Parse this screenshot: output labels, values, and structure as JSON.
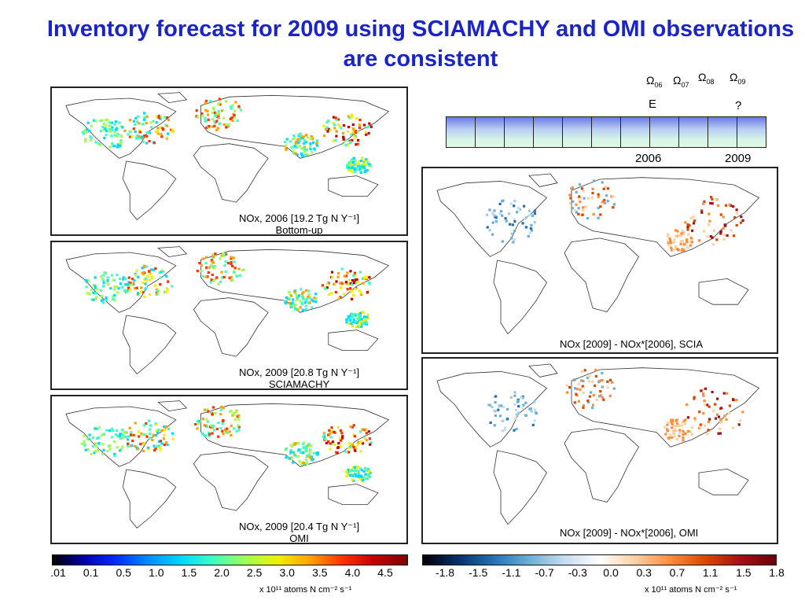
{
  "title": "Inventory forecast for 2009 using SCIAMACHY and OMI observations are consistent",
  "panels": [
    {
      "id": "bottom-up-2006",
      "caption_line1": "NOx, 2006 [19.2 Tg N Y⁻¹]",
      "caption_line2": "Bottom-up",
      "kind": "abs"
    },
    {
      "id": "sciamachy-2009",
      "caption_line1": "NOx, 2009 [20.8 Tg N Y⁻¹]",
      "caption_line2": "SCIAMACHY",
      "kind": "abs"
    },
    {
      "id": "omi-2009",
      "caption_line1": "NOx, 2009 [20.4 Tg N Y⁻¹]",
      "caption_line2": "OMI",
      "kind": "abs"
    },
    {
      "id": "diff-scia",
      "caption_line1": "NOx [2009] - NOx*[2006], SCIA",
      "kind": "diff"
    },
    {
      "id": "diff-omi",
      "caption_line1": "NOx [2009] - NOx*[2006], OMI",
      "kind": "diff"
    }
  ],
  "timeline": {
    "omegas": [
      "06",
      "07",
      "08",
      "09"
    ],
    "omega_symbol": "Ω",
    "marker_e": "E",
    "marker_q": "?",
    "year_start": "2006",
    "year_end": "2009",
    "cells": 11
  },
  "colorbar_left": {
    "ticks": [
      ".01",
      "0.1",
      "0.5",
      "1.0",
      "1.5",
      "2.0",
      "2.5",
      "3.0",
      "3.5",
      "4.0",
      "4.5"
    ],
    "units": "x 10¹¹ atoms N cm⁻² s⁻¹",
    "colors": [
      "#000000",
      "#0000b0",
      "#0030ff",
      "#0090ff",
      "#00d8ff",
      "#40ffc0",
      "#a0ff50",
      "#f0f000",
      "#ffa000",
      "#ff3000",
      "#c00000",
      "#800000"
    ]
  },
  "colorbar_right": {
    "ticks": [
      "-1.8",
      "-1.5",
      "-1.1",
      "-0.7",
      "-0.3",
      "0.0",
      "0.3",
      "0.7",
      "1.1",
      "1.5",
      "1.8"
    ],
    "units": "x 10¹¹ atoms N cm⁻² s⁻¹",
    "colors": [
      "#000000",
      "#08306b",
      "#2171b5",
      "#6baed6",
      "#c6dbef",
      "#ffffff",
      "#fdd0a2",
      "#fd8d3c",
      "#d94801",
      "#a50f15",
      "#67000d"
    ]
  },
  "colors": {
    "title": "#1a24c8",
    "land_outline": "#333333"
  }
}
